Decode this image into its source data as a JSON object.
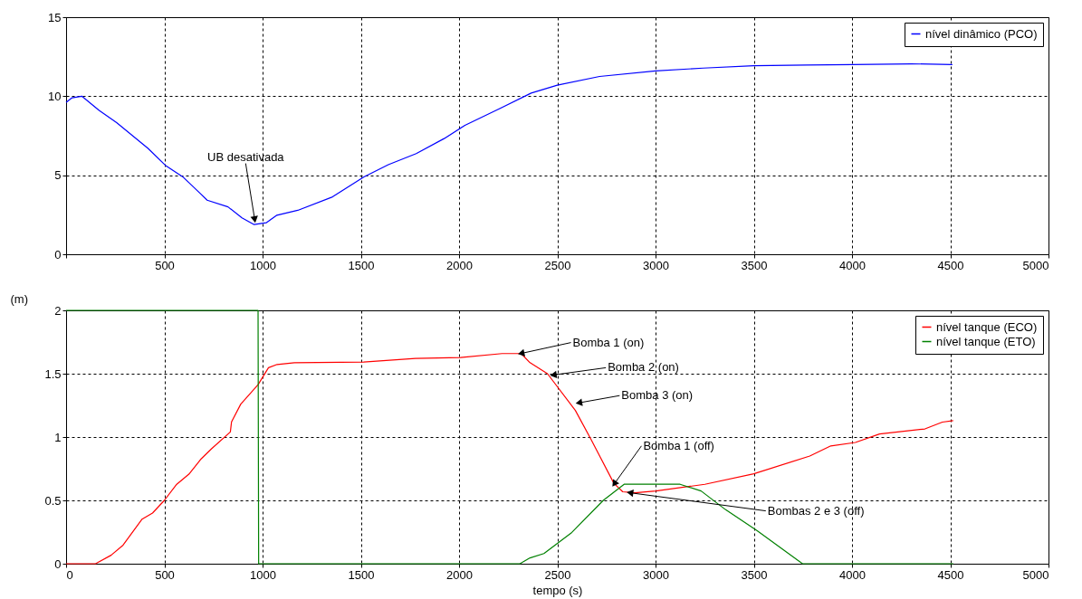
{
  "chart_data": [
    {
      "type": "line",
      "xlim": [
        0,
        5000
      ],
      "ylim": [
        0,
        15
      ],
      "xticks": [
        {
          "value": 0,
          "label": null
        },
        500,
        1000,
        1500,
        2000,
        2500,
        3000,
        3500,
        4000,
        4500,
        5000
      ],
      "yticks": [
        0,
        5,
        10,
        15
      ],
      "grid": true,
      "legend": "top right",
      "annotations": [
        {
          "text": "UB desativada",
          "x": 960,
          "y": 2.2
        }
      ],
      "series": [
        {
          "name": "nível dinâmico (PCO)",
          "color": "#0000ff",
          "x": [
            0,
            30,
            80,
            168,
            257,
            417,
            505,
            594,
            683,
            718,
            824,
            895,
            957,
            1020,
            1073,
            1179,
            1356,
            1516,
            1640,
            1782,
            1924,
            2030,
            2207,
            2367,
            2500,
            2715,
            3000,
            3243,
            3500,
            3769,
            4000,
            4300,
            4511
          ],
          "values": [
            9.6,
            9.9,
            10.0,
            9.1,
            8.33,
            6.7,
            5.63,
            4.9,
            3.84,
            3.42,
            3.0,
            2.3,
            1.88,
            2.0,
            2.47,
            2.78,
            3.63,
            4.9,
            5.67,
            6.37,
            7.32,
            8.16,
            9.22,
            10.2,
            10.7,
            11.25,
            11.6,
            11.78,
            11.93,
            11.97,
            12.0,
            12.05,
            12.0
          ]
        }
      ]
    },
    {
      "type": "line",
      "xlabel": "tempo (s)",
      "ylabel": "(m)",
      "xlim": [
        0,
        5000
      ],
      "ylim": [
        0,
        2
      ],
      "xticks": [
        0,
        500,
        1000,
        1500,
        2000,
        2500,
        3000,
        3500,
        4000,
        4500,
        5000
      ],
      "yticks": [
        0,
        0.5,
        1,
        1.5,
        2
      ],
      "grid": true,
      "legend": "top right",
      "annotations": [
        {
          "text": "Bomba 1 (on)",
          "x": 2316,
          "y": 1.66
        },
        {
          "text": "Bomba 2 (on)",
          "x": 2480,
          "y": 1.49
        },
        {
          "text": "Bomba 3 (on)",
          "x": 2610,
          "y": 1.27
        },
        {
          "text": "Bomba 1 (off)",
          "x": 2790,
          "y": 0.63
        },
        {
          "text": "Bombas 2 e 3 (off)",
          "x": 2870,
          "y": 0.56
        }
      ],
      "series": [
        {
          "name": "nível tanque (ECO)",
          "color": "#ff0000",
          "x": [
            0,
            150,
            229,
            290,
            387,
            440,
            500,
            563,
            625,
            687,
            740,
            836,
            842,
            889,
            977,
            1030,
            1074,
            1162,
            1514,
            1778,
            2007,
            2219,
            2316,
            2361,
            2450,
            2592,
            2672,
            2788,
            2833,
            2895,
            3002,
            3251,
            3500,
            3785,
            3892,
            4017,
            4140,
            4371,
            4460,
            4515
          ],
          "values": [
            0,
            0,
            0.067,
            0.147,
            0.352,
            0.4,
            0.5,
            0.627,
            0.707,
            0.827,
            0.907,
            1.04,
            1.12,
            1.26,
            1.413,
            1.547,
            1.573,
            1.587,
            1.592,
            1.62,
            1.627,
            1.659,
            1.659,
            1.587,
            1.5,
            1.21,
            0.98,
            0.635,
            0.568,
            0.56,
            0.574,
            0.627,
            0.71,
            0.85,
            0.93,
            0.957,
            1.024,
            1.064,
            1.118,
            1.129
          ]
        },
        {
          "name": "nível tanque (ETO)",
          "color": "#008000",
          "x": [
            0,
            977,
            980,
            2310,
            2361,
            2432,
            2574,
            2734,
            2840,
            3125,
            3232,
            3357,
            3517,
            3748,
            4515
          ],
          "values": [
            2,
            2,
            0,
            0,
            0.046,
            0.08,
            0.247,
            0.5,
            0.627,
            0.627,
            0.574,
            0.426,
            0.26,
            0,
            0
          ]
        }
      ]
    }
  ]
}
